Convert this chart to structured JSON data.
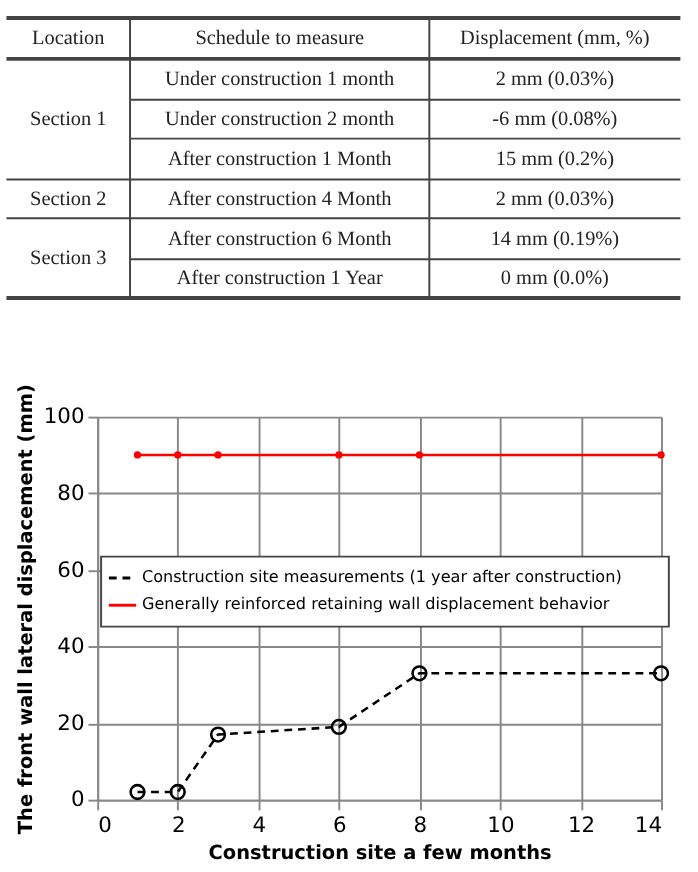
{
  "chart_data": [
    {
      "type": "other",
      "annotations": [
        "Location",
        "Schedule to measure",
        "Displacement (mm, %)",
        "Section 1",
        "Under construction 1 month",
        "2 mm (0.03%)",
        "Under construction 2 month",
        "-6 mm (0.08%)",
        "After construction 1 Month",
        "15 mm (0.2%)",
        "Section 2",
        "After construction 4 Month",
        "2 mm (0.03%)",
        "Section 3",
        "After construction 6 Month",
        "14 mm (0.19%)",
        "After construction 1 Year",
        "0 mm (0.0%)"
      ]
    },
    {
      "type": "line",
      "xlabel": "Construction site a few months",
      "ylabel": "The front wall lateral displacement (mm)",
      "xlim": [
        0,
        14
      ],
      "xticks": [
        0,
        2,
        4,
        6,
        8,
        10,
        12,
        14
      ],
      "ylim": [
        0,
        100
      ],
      "yticks": [
        0,
        20,
        40,
        60,
        80,
        100
      ],
      "grid": true,
      "legend": "left",
      "series": [
        {
          "name": "Construction site measurements (1 year after construction)",
          "color": "#000000",
          "x": [
            1,
            2,
            3,
            6,
            8,
            14
          ],
          "values": [
            2,
            2,
            17,
            19,
            33,
            33
          ],
          "line_style": "dashed",
          "marker": "circle"
        },
        {
          "name": "Generally reinforced retaining wall displacement behavior",
          "color": "#ff0000",
          "x": [
            1,
            2,
            3,
            6,
            8,
            14
          ],
          "values": [
            90,
            90,
            90,
            90,
            90,
            90
          ],
          "line_style": "solid",
          "marker": "circle"
        }
      ]
    }
  ]
}
